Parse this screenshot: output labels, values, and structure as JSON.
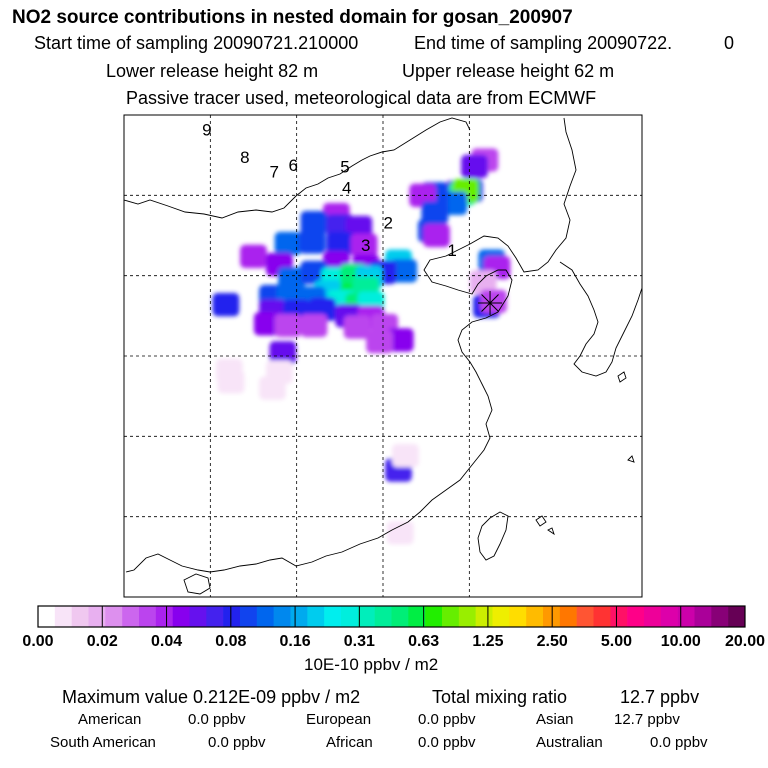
{
  "chart_data": {
    "type": "heatmap",
    "title": "NO2 source contributions in nested domain for gosan_200907",
    "subtitles": {
      "start": "Start time of sampling 20090721.210000",
      "end": "End time of sampling 20090722.",
      "end_tail": "0",
      "lower_release": "Lower release height   82 m",
      "upper_release": "Upper release height   62 m",
      "tracer_note": "Passive tracer used, meteorological data are from ECMWF"
    },
    "domain": {
      "lon_range": [
        105,
        135
      ],
      "lat_range": [
        15,
        45
      ],
      "grid_lon": [
        110,
        115,
        120,
        125
      ],
      "grid_lat": [
        20,
        25,
        30,
        35,
        40
      ]
    },
    "receptor": {
      "name": "gosan",
      "lon": 126.2,
      "lat": 33.3
    },
    "trajectory_labels": [
      {
        "label": "1",
        "lon": 124.0,
        "lat": 36.5
      },
      {
        "label": "2",
        "lon": 120.3,
        "lat": 38.2
      },
      {
        "label": "3",
        "lon": 119.0,
        "lat": 36.8
      },
      {
        "label": "4",
        "lon": 117.9,
        "lat": 40.4
      },
      {
        "label": "5",
        "lon": 117.8,
        "lat": 41.7
      },
      {
        "label": "6",
        "lon": 114.8,
        "lat": 41.8
      },
      {
        "label": "7",
        "lon": 113.7,
        "lat": 41.4
      },
      {
        "label": "8",
        "lon": 112.0,
        "lat": 42.3
      },
      {
        "label": "9",
        "lon": 109.8,
        "lat": 44.0
      }
    ],
    "legend": {
      "unit": "10E-10 ppbv / m2",
      "tick_labels": [
        "0.00",
        "0.02",
        "0.04",
        "0.08",
        "0.16",
        "0.31",
        "0.63",
        "1.25",
        "2.50",
        "5.00",
        "10.00",
        "20.00"
      ],
      "colors": [
        "#ffffff",
        "#f8e4f8",
        "#f0c8f0",
        "#e8b0f0",
        "#dd90ee",
        "#cc66ee",
        "#bb44ee",
        "#aa22ee",
        "#8800ee",
        "#6611ee",
        "#4422ee",
        "#2222ee",
        "#1144ee",
        "#0066ee",
        "#0088ee",
        "#00aaee",
        "#00ccee",
        "#00eeee",
        "#00eedd",
        "#00eebb",
        "#00ee99",
        "#00ee77",
        "#00ee44",
        "#22ee00",
        "#66ee00",
        "#99ee00",
        "#ccee00",
        "#eeee00",
        "#ffdd00",
        "#ffbb00",
        "#ff9900",
        "#ff7700",
        "#ff5533",
        "#ff3333",
        "#ff1166",
        "#ff0088",
        "#ee0099",
        "#dd00aa",
        "#cc00aa",
        "#aa0099",
        "#880077",
        "#660055"
      ]
    },
    "cells": [
      {
        "lon": 125.9,
        "lat": 42.2,
        "value": 0.03
      },
      {
        "lon": 125.3,
        "lat": 41.8,
        "value": 0.06
      },
      {
        "lon": 124.4,
        "lat": 40.2,
        "value": 0.06
      },
      {
        "lon": 125.0,
        "lat": 40.3,
        "value": 0.08
      },
      {
        "lon": 124.6,
        "lat": 40.1,
        "value": 0.4
      },
      {
        "lon": 124.8,
        "lat": 40.3,
        "value": 0.8
      },
      {
        "lon": 124.1,
        "lat": 39.5,
        "value": 0.12
      },
      {
        "lon": 123.0,
        "lat": 40.1,
        "value": 0.1
      },
      {
        "lon": 122.3,
        "lat": 40.0,
        "value": 0.04
      },
      {
        "lon": 123.0,
        "lat": 38.9,
        "value": 0.1
      },
      {
        "lon": 122.8,
        "lat": 37.8,
        "value": 0.1
      },
      {
        "lon": 123.1,
        "lat": 37.5,
        "value": 0.04
      },
      {
        "lon": 117.3,
        "lat": 38.8,
        "value": 0.04
      },
      {
        "lon": 116.0,
        "lat": 38.3,
        "value": 0.1
      },
      {
        "lon": 117.5,
        "lat": 38.1,
        "value": 0.07
      },
      {
        "lon": 118.6,
        "lat": 38.0,
        "value": 0.06
      },
      {
        "lon": 114.5,
        "lat": 37.0,
        "value": 0.12
      },
      {
        "lon": 115.9,
        "lat": 37.1,
        "value": 0.1
      },
      {
        "lon": 117.5,
        "lat": 37.0,
        "value": 0.08
      },
      {
        "lon": 118.9,
        "lat": 36.9,
        "value": 0.04
      },
      {
        "lon": 112.5,
        "lat": 36.2,
        "value": 0.04
      },
      {
        "lon": 114.0,
        "lat": 35.7,
        "value": 0.05
      },
      {
        "lon": 117.3,
        "lat": 35.8,
        "value": 0.05
      },
      {
        "lon": 119.0,
        "lat": 35.6,
        "value": 0.05
      },
      {
        "lon": 120.9,
        "lat": 35.9,
        "value": 0.2
      },
      {
        "lon": 121.2,
        "lat": 35.3,
        "value": 0.12
      },
      {
        "lon": 120.0,
        "lat": 35.2,
        "value": 0.08
      },
      {
        "lon": 114.7,
        "lat": 34.8,
        "value": 0.12
      },
      {
        "lon": 116.0,
        "lat": 35.2,
        "value": 0.1
      },
      {
        "lon": 117.2,
        "lat": 34.8,
        "value": 0.3
      },
      {
        "lon": 118.3,
        "lat": 35.0,
        "value": 0.45
      },
      {
        "lon": 119.2,
        "lat": 34.9,
        "value": 0.2
      },
      {
        "lon": 116.8,
        "lat": 34.0,
        "value": 0.2
      },
      {
        "lon": 118.3,
        "lat": 33.8,
        "value": 0.6
      },
      {
        "lon": 119.0,
        "lat": 34.2,
        "value": 0.4
      },
      {
        "lon": 113.6,
        "lat": 33.7,
        "value": 0.1
      },
      {
        "lon": 114.6,
        "lat": 33.7,
        "value": 0.12
      },
      {
        "lon": 115.9,
        "lat": 33.6,
        "value": 0.12
      },
      {
        "lon": 117.6,
        "lat": 33.4,
        "value": 0.3
      },
      {
        "lon": 118.6,
        "lat": 33.2,
        "value": 0.5
      },
      {
        "lon": 119.3,
        "lat": 33.3,
        "value": 0.3
      },
      {
        "lon": 113.6,
        "lat": 32.8,
        "value": 0.06
      },
      {
        "lon": 115.0,
        "lat": 32.8,
        "value": 0.08
      },
      {
        "lon": 116.5,
        "lat": 32.9,
        "value": 0.08
      },
      {
        "lon": 118.0,
        "lat": 32.5,
        "value": 0.06
      },
      {
        "lon": 119.3,
        "lat": 32.4,
        "value": 0.04
      },
      {
        "lon": 113.3,
        "lat": 32.0,
        "value": 0.05
      },
      {
        "lon": 114.5,
        "lat": 31.9,
        "value": 0.03
      },
      {
        "lon": 116.0,
        "lat": 31.9,
        "value": 0.03
      },
      {
        "lon": 118.5,
        "lat": 31.8,
        "value": 0.03
      },
      {
        "lon": 120.1,
        "lat": 31.9,
        "value": 0.03
      },
      {
        "lon": 121.0,
        "lat": 31.0,
        "value": 0.05
      },
      {
        "lon": 119.8,
        "lat": 30.9,
        "value": 0.03
      },
      {
        "lon": 114.2,
        "lat": 30.2,
        "value": 0.06
      },
      {
        "lon": 110.9,
        "lat": 33.2,
        "value": 0.08
      },
      {
        "lon": 126.3,
        "lat": 35.9,
        "value": 0.12
      },
      {
        "lon": 126.6,
        "lat": 35.5,
        "value": 0.04
      },
      {
        "lon": 125.8,
        "lat": 34.6,
        "value": 0.02
      },
      {
        "lon": 126.0,
        "lat": 33.1,
        "value": 0.08
      },
      {
        "lon": 126.4,
        "lat": 33.4,
        "value": 0.03
      },
      {
        "lon": 120.9,
        "lat": 22.9,
        "value": 0.07
      },
      {
        "lon": 111.1,
        "lat": 29.1,
        "value": 0.01
      },
      {
        "lon": 111.2,
        "lat": 28.4,
        "value": 0.01
      },
      {
        "lon": 114.0,
        "lat": 29.0,
        "value": 0.01
      },
      {
        "lon": 113.6,
        "lat": 28.0,
        "value": 0.01
      },
      {
        "lon": 121.3,
        "lat": 23.8,
        "value": 0.01
      },
      {
        "lon": 121.0,
        "lat": 19.0,
        "value": 0.01
      }
    ]
  },
  "footer": {
    "max_label": "Maximum value  0.212E-09 ppbv / m2",
    "total_label": "Total mixing ratio",
    "total_value": "12.7 ppbv",
    "regions": [
      {
        "name": "American",
        "value": "0.0 ppbv"
      },
      {
        "name": "European",
        "value": "0.0 ppbv"
      },
      {
        "name": "Asian",
        "value": "12.7 ppbv"
      },
      {
        "name": "South American",
        "value": "0.0 ppbv"
      },
      {
        "name": "African",
        "value": "0.0 ppbv"
      },
      {
        "name": "Australian",
        "value": "0.0 ppbv"
      }
    ]
  }
}
